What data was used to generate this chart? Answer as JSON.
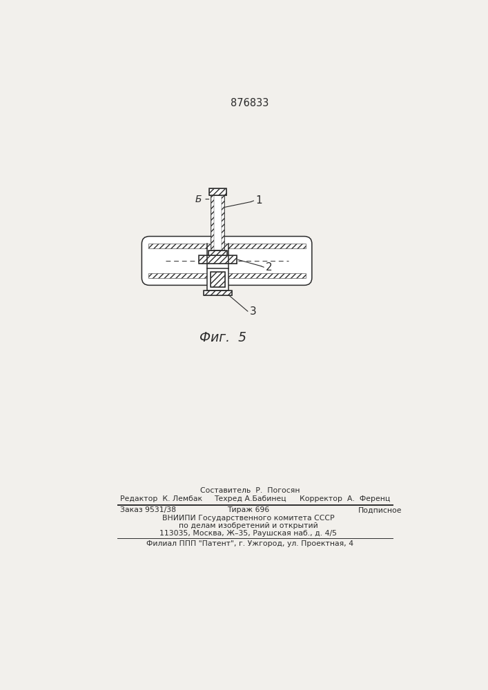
{
  "title": "876833",
  "fig_label": "Фиг.  5",
  "section_label": "Б – Б",
  "ref1": "1",
  "ref2": "2",
  "ref3": "3",
  "bg_color": "#f2f0ec",
  "line_color": "#2a2a2a",
  "footer_line1_left": "Редактор  К. Лембак",
  "footer_line1_center_top": "Составитель  Р.  Погосян",
  "footer_line1_center_bot": "Техред А.Бабинец",
  "footer_line1_right": "Корректор  А.  Ференц",
  "footer_line2_left": "Заказ 9531/38",
  "footer_line2_center1": "Тираж 696",
  "footer_line2_center2": "Подписное",
  "footer_line2_org": "ВНИИПИ Государственного комитета СССР",
  "footer_line2_org2": "по делам изобретений и открытий",
  "footer_line2_addr": "113035, Москва, Ж–35, Раушская наб., д. 4/5",
  "footer_line3": "Филиал ППП \"Патент\", г. Ужгород, ул. Проектная, 4"
}
